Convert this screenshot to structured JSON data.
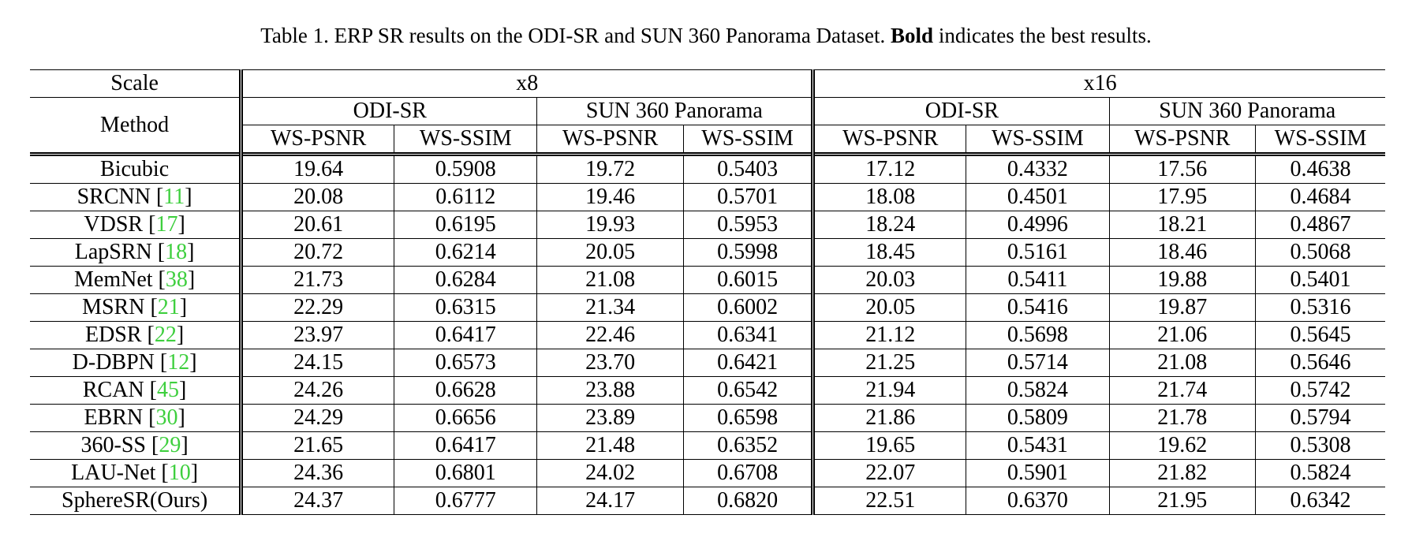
{
  "caption": {
    "prefix": "Table 1. ERP SR results on the ODI-SR and SUN 360 Panorama Dataset. ",
    "bold": "Bold",
    "suffix": " indicates the best results."
  },
  "header": {
    "scale_label": "Scale",
    "method_label": "Method",
    "scales": [
      "x8",
      "x16"
    ],
    "datasets": [
      "ODI-SR",
      "SUN 360 Panorama",
      "ODI-SR",
      "SUN 360 Panorama"
    ],
    "metrics": [
      "WS-PSNR",
      "WS-SSIM",
      "WS-PSNR",
      "WS-SSIM",
      "WS-PSNR",
      "WS-SSIM",
      "WS-PSNR",
      "WS-SSIM"
    ]
  },
  "colors": {
    "citation": "#3ecf3e"
  },
  "rows": [
    {
      "method": "Bicubic",
      "cite": "",
      "values": [
        "19.64",
        "0.5908",
        "19.72",
        "0.5403",
        "17.12",
        "0.4332",
        "17.56",
        "0.4638"
      ],
      "bold": []
    },
    {
      "method": "SRCNN [",
      "cite": "11",
      "values": [
        "20.08",
        "0.6112",
        "19.46",
        "0.5701",
        "18.08",
        "0.4501",
        "17.95",
        "0.4684"
      ],
      "bold": []
    },
    {
      "method": "VDSR [",
      "cite": "17",
      "values": [
        "20.61",
        "0.6195",
        "19.93",
        "0.5953",
        "18.24",
        "0.4996",
        "18.21",
        "0.4867"
      ],
      "bold": []
    },
    {
      "method": "LapSRN [",
      "cite": "18",
      "values": [
        "20.72",
        "0.6214",
        "20.05",
        "0.5998",
        "18.45",
        "0.5161",
        "18.46",
        "0.5068"
      ],
      "bold": []
    },
    {
      "method": "MemNet [",
      "cite": "38",
      "values": [
        "21.73",
        "0.6284",
        "21.08",
        "0.6015",
        "20.03",
        "0.5411",
        "19.88",
        "0.5401"
      ],
      "bold": []
    },
    {
      "method": "MSRN [",
      "cite": "21",
      "values": [
        "22.29",
        "0.6315",
        "21.34",
        "0.6002",
        "20.05",
        "0.5416",
        "19.87",
        "0.5316"
      ],
      "bold": []
    },
    {
      "method": "EDSR [",
      "cite": "22",
      "values": [
        "23.97",
        "0.6417",
        "22.46",
        "0.6341",
        "21.12",
        "0.5698",
        "21.06",
        "0.5645"
      ],
      "bold": []
    },
    {
      "method": "D-DBPN [",
      "cite": "12",
      "values": [
        "24.15",
        "0.6573",
        "23.70",
        "0.6421",
        "21.25",
        "0.5714",
        "21.08",
        "0.5646"
      ],
      "bold": []
    },
    {
      "method": "RCAN [",
      "cite": "45",
      "values": [
        "24.26",
        "0.6628",
        "23.88",
        "0.6542",
        "21.94",
        "0.5824",
        "21.74",
        "0.5742"
      ],
      "bold": []
    },
    {
      "method": "EBRN [",
      "cite": "30",
      "values": [
        "24.29",
        "0.6656",
        "23.89",
        "0.6598",
        "21.86",
        "0.5809",
        "21.78",
        "0.5794"
      ],
      "bold": []
    },
    {
      "method": "360-SS [",
      "cite": "29",
      "values": [
        "21.65",
        "0.6417",
        "21.48",
        "0.6352",
        "19.65",
        "0.5431",
        "19.62",
        "0.5308"
      ],
      "bold": []
    },
    {
      "method": "LAU-Net [",
      "cite": "10",
      "values": [
        "24.36",
        "0.6801",
        "24.02",
        "0.6708",
        "22.07",
        "0.5901",
        "21.82",
        "0.5824"
      ],
      "bold": [
        1
      ]
    },
    {
      "method": "SphereSR(Ours)",
      "cite": "",
      "values": [
        "24.37",
        "0.6777",
        "24.17",
        "0.6820",
        "22.51",
        "0.6370",
        "21.95",
        "0.6342"
      ],
      "bold": [
        0,
        2,
        3,
        4,
        5,
        6,
        7
      ]
    }
  ]
}
